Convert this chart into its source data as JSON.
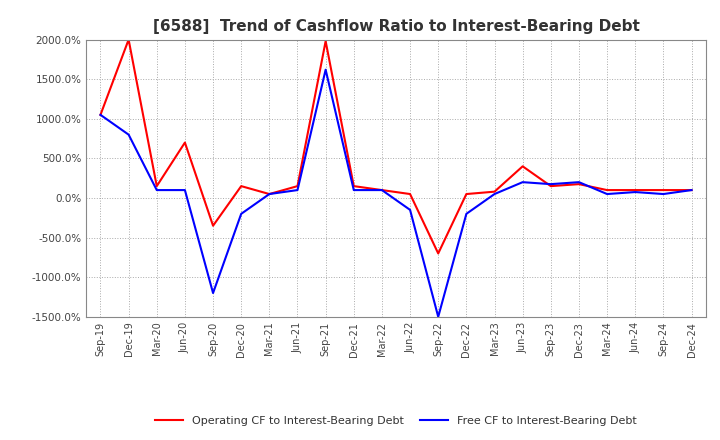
{
  "title": "[6588]  Trend of Cashflow Ratio to Interest-Bearing Debt",
  "title_fontsize": 11,
  "legend_labels": [
    "Operating CF to Interest-Bearing Debt",
    "Free CF to Interest-Bearing Debt"
  ],
  "legend_colors": [
    "#ff0000",
    "#0000ff"
  ],
  "x_labels": [
    "Sep-19",
    "Dec-19",
    "Mar-20",
    "Jun-20",
    "Sep-20",
    "Dec-20",
    "Mar-21",
    "Jun-21",
    "Sep-21",
    "Dec-21",
    "Mar-22",
    "Jun-22",
    "Sep-22",
    "Dec-22",
    "Mar-23",
    "Jun-23",
    "Sep-23",
    "Dec-23",
    "Mar-24",
    "Jun-24",
    "Sep-24",
    "Dec-24"
  ],
  "operating_cf": [
    1050,
    2000,
    150,
    700,
    -350,
    150,
    50,
    150,
    1980,
    150,
    100,
    50,
    -700,
    50,
    80,
    400,
    150,
    175,
    100,
    100,
    100,
    100
  ],
  "free_cf": [
    1050,
    800,
    100,
    100,
    -1200,
    -200,
    50,
    100,
    1620,
    100,
    100,
    -150,
    -1500,
    -200,
    50,
    200,
    175,
    200,
    50,
    75,
    50,
    100
  ],
  "ylim": [
    -1500,
    2000
  ],
  "yticks": [
    -1500,
    -1000,
    -500,
    0,
    500,
    1000,
    1500,
    2000
  ],
  "grid_color": "#aaaaaa",
  "bg_color": "#ffffff",
  "line_width": 1.5
}
